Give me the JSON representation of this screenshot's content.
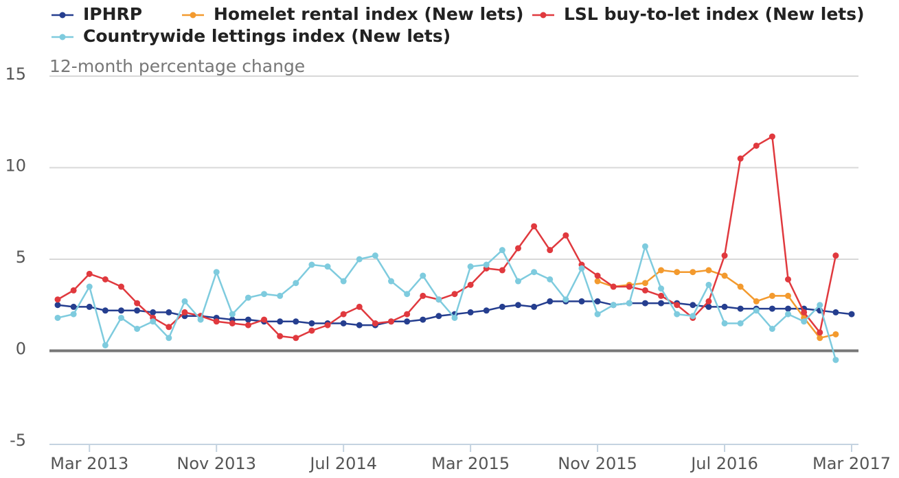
{
  "chart_data": {
    "type": "line",
    "subtitle": "12-month percentage change",
    "categories": [
      null,
      null,
      "Mar 2013",
      null,
      null,
      null,
      null,
      null,
      null,
      null,
      "Nov 2013",
      null,
      null,
      null,
      null,
      null,
      null,
      null,
      "Jul 2014",
      null,
      null,
      null,
      null,
      null,
      null,
      null,
      "Mar 2015",
      null,
      null,
      null,
      null,
      null,
      null,
      null,
      "Nov 2015",
      null,
      null,
      null,
      null,
      null,
      null,
      null,
      "Jul 2016",
      null,
      null,
      null,
      null,
      null,
      null,
      null,
      "Mar 2017"
    ],
    "series": [
      {
        "name": "IPHRP",
        "color": "#253e8f",
        "values": [
          2.5,
          2.4,
          2.4,
          2.2,
          2.2,
          2.2,
          2.1,
          2.1,
          1.9,
          1.9,
          1.8,
          1.7,
          1.7,
          1.6,
          1.6,
          1.6,
          1.5,
          1.5,
          1.5,
          1.4,
          1.4,
          1.6,
          1.6,
          1.7,
          1.9,
          2.0,
          2.1,
          2.2,
          2.4,
          2.5,
          2.4,
          2.7,
          2.7,
          2.7,
          2.7,
          2.5,
          2.6,
          2.6,
          2.6,
          2.6,
          2.5,
          2.4,
          2.4,
          2.3,
          2.3,
          2.3,
          2.3,
          2.3,
          2.2,
          2.1,
          2.0
        ]
      },
      {
        "name": "Homelet rental index (New lets)",
        "color": "#f39a2e",
        "values": [
          null,
          null,
          null,
          null,
          null,
          null,
          null,
          null,
          null,
          null,
          null,
          null,
          null,
          null,
          null,
          null,
          null,
          null,
          null,
          null,
          null,
          null,
          null,
          null,
          null,
          null,
          null,
          null,
          null,
          null,
          null,
          null,
          null,
          null,
          3.8,
          3.5,
          3.6,
          3.7,
          4.4,
          4.3,
          4.3,
          4.4,
          4.1,
          3.5,
          2.7,
          3.0,
          3.0,
          1.8,
          0.7,
          0.9,
          null
        ]
      },
      {
        "name": "LSL buy-to-let index (New lets)",
        "color": "#e0393e",
        "values": [
          2.8,
          3.3,
          4.2,
          3.9,
          3.5,
          2.6,
          1.8,
          1.3,
          2.1,
          1.9,
          1.6,
          1.5,
          1.4,
          1.7,
          0.8,
          0.7,
          1.1,
          1.4,
          2.0,
          2.4,
          1.5,
          1.6,
          2.0,
          3.0,
          2.8,
          3.1,
          3.6,
          4.5,
          4.4,
          5.6,
          6.8,
          5.5,
          6.3,
          4.7,
          4.1,
          3.5,
          3.5,
          3.3,
          3.0,
          2.5,
          1.8,
          2.7,
          5.2,
          10.5,
          11.2,
          11.7,
          3.9,
          2.1,
          1.0,
          5.2,
          null
        ]
      },
      {
        "name": "Countrywide lettings index (New lets)",
        "color": "#7ecbde",
        "values": [
          1.8,
          2.0,
          3.5,
          0.3,
          1.8,
          1.2,
          1.6,
          0.7,
          2.7,
          1.7,
          4.3,
          2.0,
          2.9,
          3.1,
          3.0,
          3.7,
          4.7,
          4.6,
          3.8,
          5.0,
          5.2,
          3.8,
          3.1,
          4.1,
          2.8,
          1.8,
          4.6,
          4.7,
          5.5,
          3.8,
          4.3,
          3.9,
          2.8,
          4.5,
          2.0,
          2.5,
          2.6,
          5.7,
          3.4,
          2.0,
          1.9,
          3.6,
          1.5,
          1.5,
          2.2,
          1.2,
          2.0,
          1.6,
          2.5,
          -0.5,
          null
        ]
      }
    ],
    "ylim": [
      -5,
      15
    ],
    "yticks": [
      -5,
      0,
      5,
      10,
      15
    ],
    "grid": true
  }
}
